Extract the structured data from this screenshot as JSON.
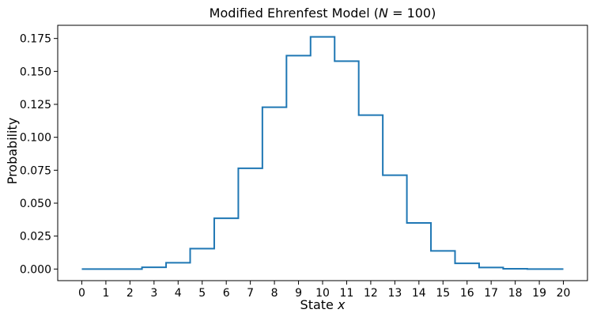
{
  "chart_data": {
    "type": "line",
    "drawstyle": "steps-mid",
    "title": "Modified Ehrenfest Model (N = 100)",
    "title_parts": {
      "prefix": "Modified Ehrenfest Model (",
      "var": "N",
      "suffix": " = 100)"
    },
    "xlabel": "State x",
    "xlabel_parts": {
      "prefix": "State ",
      "var": "x"
    },
    "ylabel": "Probability",
    "xlim": [
      -1,
      21
    ],
    "ylim": [
      -0.0088,
      0.185
    ],
    "grid": false,
    "legend": "none",
    "series": [
      {
        "color": "#1f77b4",
        "x": [
          0,
          1,
          2,
          3,
          4,
          5,
          6,
          7,
          8,
          9,
          10,
          11,
          12,
          13,
          14,
          15,
          16,
          17,
          18,
          19,
          20
        ],
        "values": [
          0.0,
          0.0,
          0.0,
          0.0013,
          0.0048,
          0.0155,
          0.0385,
          0.0765,
          0.1228,
          0.162,
          0.1762,
          0.1578,
          0.1168,
          0.0712,
          0.035,
          0.0138,
          0.0043,
          0.0012,
          0.0002,
          0.0,
          0.0
        ]
      }
    ],
    "xticks": [
      0,
      1,
      2,
      3,
      4,
      5,
      6,
      7,
      8,
      9,
      10,
      11,
      12,
      13,
      14,
      15,
      16,
      17,
      18,
      19,
      20
    ],
    "yticks": [
      0.0,
      0.025,
      0.05,
      0.075,
      0.1,
      0.125,
      0.15,
      0.175
    ],
    "ytick_labels": [
      "0.000",
      "0.025",
      "0.050",
      "0.075",
      "0.100",
      "0.125",
      "0.150",
      "0.175"
    ]
  }
}
